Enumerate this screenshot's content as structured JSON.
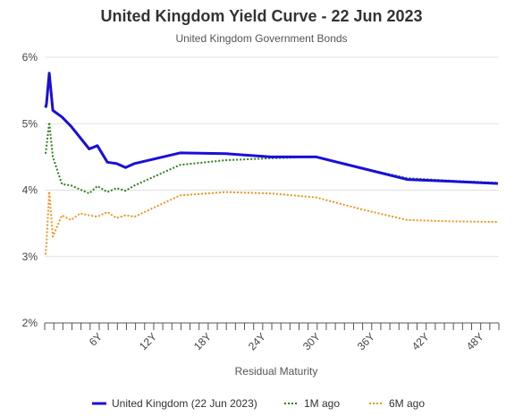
{
  "chart_data": {
    "type": "line",
    "title": "United Kingdom Yield Curve - 22 Jun 2023",
    "subtitle": "United Kingdom Government Bonds",
    "xlabel": "Residual Maturity",
    "ylabel": "",
    "xlim": [
      0,
      50
    ],
    "ylim": [
      2,
      6
    ],
    "y_ticks": [
      2,
      3,
      4,
      5,
      6
    ],
    "y_tick_labels": [
      "2%",
      "3%",
      "4%",
      "5%",
      "6%"
    ],
    "x_ticks": [
      6,
      12,
      18,
      24,
      30,
      36,
      42,
      48
    ],
    "x_tick_labels": [
      "6Y",
      "12Y",
      "18Y",
      "24Y",
      "30Y",
      "36Y",
      "42Y",
      "48Y"
    ],
    "grid": "horizontal",
    "legend_position": "bottom",
    "series": [
      {
        "name": "United Kingdom (22 Jun 2023)",
        "color": "#1a0fd6",
        "style": "solid",
        "points": [
          [
            0.1,
            5.24
          ],
          [
            0.2,
            5.3
          ],
          [
            0.5,
            5.76
          ],
          [
            0.9,
            5.2
          ],
          [
            1.9,
            5.1
          ],
          [
            2.9,
            4.96
          ],
          [
            4.9,
            4.62
          ],
          [
            5.8,
            4.67
          ],
          [
            6.9,
            4.42
          ],
          [
            7.9,
            4.4
          ],
          [
            8.9,
            4.34
          ],
          [
            9.9,
            4.4
          ],
          [
            14.9,
            4.56
          ],
          [
            19.9,
            4.55
          ],
          [
            24.9,
            4.5
          ],
          [
            29.9,
            4.5
          ],
          [
            34.9,
            4.33
          ],
          [
            39.9,
            4.16
          ],
          [
            44.9,
            4.13
          ],
          [
            49.9,
            4.1
          ]
        ]
      },
      {
        "name": "1M ago",
        "color": "#2e7d1a",
        "style": "dotted",
        "points": [
          [
            0.1,
            4.55
          ],
          [
            0.2,
            4.65
          ],
          [
            0.5,
            5.02
          ],
          [
            0.9,
            4.5
          ],
          [
            1.9,
            4.09
          ],
          [
            2.9,
            4.07
          ],
          [
            4.9,
            3.95
          ],
          [
            5.8,
            4.06
          ],
          [
            6.9,
            3.97
          ],
          [
            7.9,
            4.03
          ],
          [
            8.9,
            3.99
          ],
          [
            9.9,
            4.07
          ],
          [
            14.9,
            4.38
          ],
          [
            19.9,
            4.45
          ],
          [
            24.9,
            4.48
          ],
          [
            29.9,
            4.5
          ],
          [
            34.9,
            4.33
          ],
          [
            39.9,
            4.18
          ],
          [
            44.9,
            4.14
          ],
          [
            49.9,
            4.11
          ]
        ]
      },
      {
        "name": "6M ago",
        "color": "#f0931e",
        "style": "dotted",
        "points": [
          [
            0.1,
            3.03
          ],
          [
            0.2,
            3.2
          ],
          [
            0.5,
            3.98
          ],
          [
            0.9,
            3.3
          ],
          [
            1.9,
            3.62
          ],
          [
            2.9,
            3.55
          ],
          [
            3.9,
            3.65
          ],
          [
            4.9,
            3.62
          ],
          [
            5.8,
            3.6
          ],
          [
            6.9,
            3.67
          ],
          [
            7.9,
            3.58
          ],
          [
            8.9,
            3.62
          ],
          [
            9.9,
            3.6
          ],
          [
            14.9,
            3.92
          ],
          [
            19.9,
            3.97
          ],
          [
            24.9,
            3.95
          ],
          [
            29.9,
            3.89
          ],
          [
            34.9,
            3.71
          ],
          [
            39.9,
            3.55
          ],
          [
            44.9,
            3.53
          ],
          [
            49.9,
            3.52
          ]
        ]
      }
    ]
  }
}
